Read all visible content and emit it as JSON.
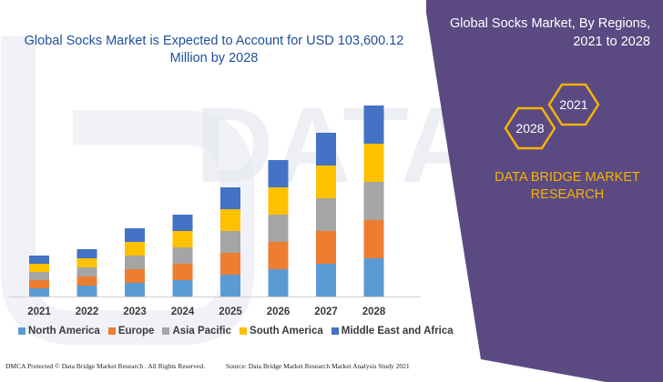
{
  "chart_data": {
    "type": "bar",
    "stacked": true,
    "title": "Global Socks Market is Expected to Account for USD 103,600.12 Million by 2028",
    "title_lines": [
      "Global Socks Market is Expected to Account for USD 103,600.12",
      "Million by 2028"
    ],
    "categories": [
      "2021",
      "2022",
      "2023",
      "2024",
      "2025",
      "2026",
      "2027",
      "2028"
    ],
    "series": [
      {
        "name": "North America",
        "color": "#5b9bd5",
        "values": [
          9,
          12,
          15,
          18,
          24,
          30,
          36,
          42
        ]
      },
      {
        "name": "Europe",
        "color": "#ed7d31",
        "values": [
          9,
          10,
          15,
          18,
          24,
          30,
          36,
          42
        ]
      },
      {
        "name": "Asia Pacific",
        "color": "#a5a5a5",
        "values": [
          9,
          10,
          15,
          18,
          24,
          30,
          36,
          42
        ]
      },
      {
        "name": "South America",
        "color": "#ffc000",
        "values": [
          9,
          10,
          15,
          18,
          24,
          30,
          36,
          42
        ]
      },
      {
        "name": "Middle East and Africa",
        "color": "#4472c4",
        "values": [
          9,
          10,
          15,
          18,
          24,
          30,
          36,
          42
        ]
      }
    ],
    "y_axis_visible": false,
    "legend_position": "bottom"
  },
  "side_panel": {
    "title_lines": [
      "Global Socks Market, By Regions,",
      "2021 to 2028"
    ],
    "hex_top": "2021",
    "hex_bottom": "2028",
    "brand_lines": [
      "DATA BRIDGE MARKET",
      "RESEARCH"
    ],
    "background_color": "#5b4a82",
    "hex_color": "#f5b400"
  },
  "footer": {
    "left": "DMCA Protected © Data Bridge Market Research . All Rights Reserved.",
    "right": "Source: Data Bridge Market Research Market Analysis Study 2021"
  },
  "watermark": {
    "text": "DATABRIDGE"
  }
}
